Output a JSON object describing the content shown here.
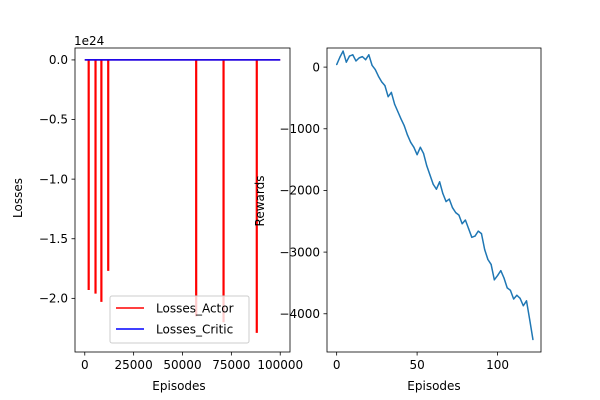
{
  "chart_data": [
    {
      "type": "line",
      "xlabel": "Episodes",
      "ylabel": "Losses",
      "offset_text": "1e24",
      "xlim": [
        -5000,
        105000
      ],
      "ylim": [
        -2.45,
        0.1
      ],
      "xticks": [
        0,
        25000,
        50000,
        75000,
        100000
      ],
      "xtick_labels": [
        "0",
        "25000",
        "50000",
        "75000",
        "100000"
      ],
      "yticks": [
        0.0,
        -0.5,
        -1.0,
        -1.5,
        -2.0
      ],
      "ytick_labels": [
        "0.0",
        "−0.5",
        "−1.0",
        "−1.5",
        "−2.0"
      ],
      "grid": false,
      "legend": "lower center",
      "series": [
        {
          "name": "Losses_Actor",
          "color": "#ff0000",
          "baseline": 0.0,
          "spikes": [
            {
              "x": 2000,
              "y": -1.93
            },
            {
              "x": 5500,
              "y": -1.96
            },
            {
              "x": 8500,
              "y": -2.03
            },
            {
              "x": 12000,
              "y": -1.77
            },
            {
              "x": 57000,
              "y": -2.15
            },
            {
              "x": 71000,
              "y": -2.2
            },
            {
              "x": 88000,
              "y": -2.29
            }
          ],
          "x_range": [
            0,
            100000
          ]
        },
        {
          "name": "Losses_Critic",
          "color": "#0000ff",
          "x": [
            0,
            100000
          ],
          "values": [
            0.0,
            0.0
          ]
        }
      ]
    },
    {
      "type": "line",
      "xlabel": "Episodes",
      "ylabel": "Rewards",
      "xlim": [
        -6,
        127
      ],
      "ylim": [
        -4620,
        310
      ],
      "xticks": [
        0,
        50,
        100
      ],
      "xtick_labels": [
        "0",
        "50",
        "100"
      ],
      "yticks": [
        0,
        -1000,
        -2000,
        -3000,
        -4000
      ],
      "ytick_labels": [
        "0",
        "−1000",
        "−2000",
        "−3000",
        "−4000"
      ],
      "grid": false,
      "series": [
        {
          "color": "#1f77b4",
          "x": [
            0,
            2,
            4,
            6,
            8,
            10,
            12,
            14,
            16,
            18,
            20,
            22,
            24,
            26,
            28,
            30,
            32,
            34,
            36,
            38,
            40,
            42,
            44,
            46,
            48,
            50,
            52,
            54,
            56,
            58,
            60,
            62,
            64,
            66,
            68,
            70,
            72,
            74,
            76,
            78,
            80,
            82,
            84,
            86,
            88,
            90,
            92,
            94,
            96,
            98,
            100,
            102,
            104,
            106,
            108,
            110,
            112,
            114,
            116,
            118,
            120,
            122
          ],
          "values": [
            40,
            160,
            260,
            80,
            180,
            200,
            100,
            150,
            170,
            120,
            200,
            30,
            -40,
            -150,
            -240,
            -300,
            -480,
            -410,
            -600,
            -720,
            -840,
            -950,
            -1100,
            -1220,
            -1300,
            -1420,
            -1300,
            -1400,
            -1600,
            -1750,
            -1900,
            -1980,
            -1860,
            -2050,
            -2180,
            -2140,
            -2280,
            -2360,
            -2400,
            -2540,
            -2480,
            -2620,
            -2760,
            -2740,
            -2660,
            -2700,
            -2960,
            -3120,
            -3200,
            -3450,
            -3380,
            -3300,
            -3420,
            -3580,
            -3620,
            -3760,
            -3700,
            -3750,
            -3870,
            -3790,
            -4100,
            -4420
          ]
        }
      ]
    }
  ]
}
